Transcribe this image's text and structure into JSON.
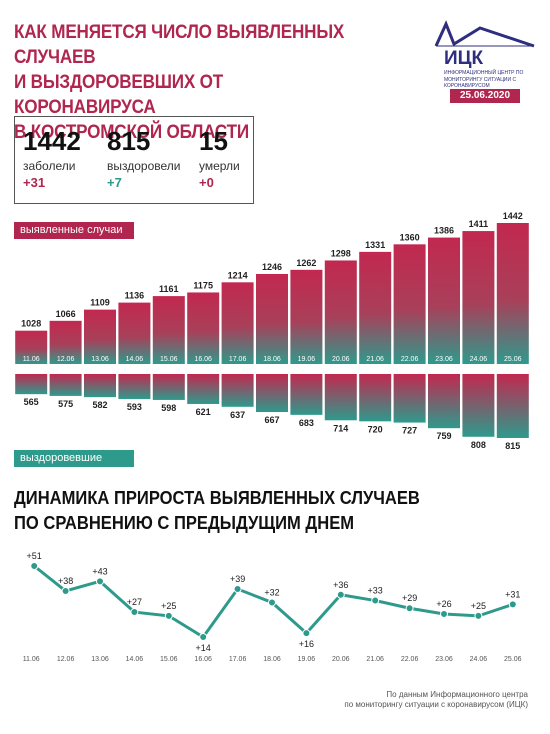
{
  "header": {
    "title_lines": [
      "КАК МЕНЯЕТСЯ ЧИСЛО ВЫЯВЛЕННЫХ СЛУЧАЕВ",
      "И ВЫЗДОРОВЕВШИХ ОТ КОРОНАВИРУСА",
      "В КОСТРОМСКОЙ ОБЛАСТИ"
    ],
    "logo_name": "ИЦК",
    "logo_subtitle": "ИНФОРМАЦИОННЫЙ ЦЕНТР ПО МОНИТОРИНГУ СИТУАЦИИ С КОРОНАВИРУСОМ",
    "date": "25.06.2020"
  },
  "stats": [
    {
      "value": "1442",
      "label": "заболели",
      "delta": "+31"
    },
    {
      "value": "815",
      "label": "выздоровели",
      "delta": "+7"
    },
    {
      "value": "15",
      "label": "умерли",
      "delta": "+0"
    }
  ],
  "colors": {
    "brand_pink": "#b0264f",
    "brand_teal": "#2e9a8c",
    "logo_blue": "#2e2d7e"
  },
  "tags": {
    "detected": "выявленные случаи",
    "recovered": "выздоровевшие"
  },
  "section_title_lines": [
    "ДИНАМИКА ПРИРОСТА ВЫЯВЛЕННЫХ СЛУЧАЕВ",
    "ПО СРАВНЕНИЮ С ПРЕДЫДУЩИМ ДНЕМ"
  ],
  "footnote_lines": [
    "По данным Информационного центра",
    "по мониторингу ситуации с коронавирусом (ИЦК)"
  ],
  "chart_data": [
    {
      "type": "bar",
      "categories": [
        "11.06",
        "12.06",
        "13.06",
        "14.06",
        "15.06",
        "16.06",
        "17.06",
        "18.06",
        "19.06",
        "20.06",
        "21.06",
        "22.06",
        "23.06",
        "24.06",
        "25.06"
      ],
      "series": [
        {
          "name": "выявленные случаи",
          "values": [
            1028,
            1066,
            1109,
            1136,
            1161,
            1175,
            1214,
            1246,
            1262,
            1298,
            1331,
            1360,
            1386,
            1411,
            1442
          ]
        },
        {
          "name": "выздоровевшие",
          "values": [
            565,
            575,
            582,
            593,
            598,
            621,
            637,
            667,
            683,
            714,
            720,
            727,
            759,
            808,
            815
          ]
        }
      ]
    },
    {
      "type": "line",
      "categories": [
        "11.06",
        "12.06",
        "13.06",
        "14.06",
        "15.06",
        "16.06",
        "17.06",
        "18.06",
        "19.06",
        "20.06",
        "21.06",
        "22.06",
        "23.06",
        "24.06",
        "25.06"
      ],
      "values": [
        51,
        38,
        43,
        27,
        25,
        14,
        39,
        32,
        16,
        36,
        33,
        29,
        26,
        25,
        31
      ],
      "labels": [
        "+51",
        "+38",
        "+43",
        "+27",
        "+25",
        "+14",
        "+39",
        "+32",
        "+16",
        "+36",
        "+33",
        "+29",
        "+26",
        "+25",
        "+31"
      ]
    }
  ]
}
